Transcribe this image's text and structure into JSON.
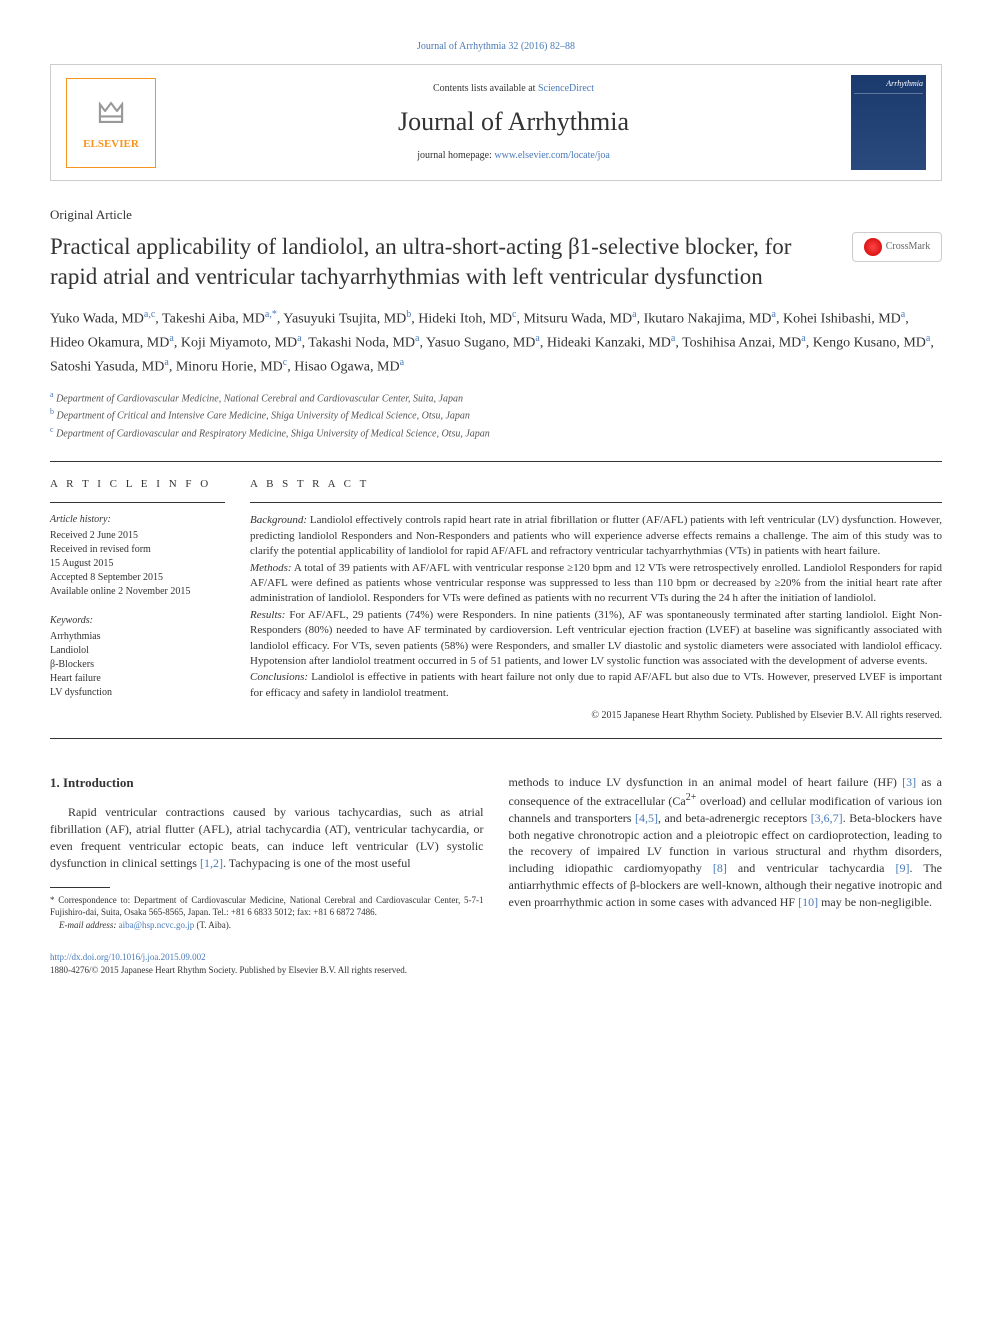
{
  "topLink": "Journal of Arrhythmia 32 (2016) 82–88",
  "header": {
    "contentsPrefix": "Contents lists available at ",
    "contentsLink": "ScienceDirect",
    "journalTitle": "Journal of Arrhythmia",
    "homepagePrefix": "journal homepage: ",
    "homepageLink": "www.elsevier.com/locate/joa",
    "elsevierBrand": "ELSEVIER",
    "coverTitle": "Arrhythmia"
  },
  "articleType": "Original Article",
  "title": "Practical applicability of landiolol, an ultra-short-acting β1-selective blocker, for rapid atrial and ventricular tachyarrhythmias with left ventricular dysfunction",
  "crossmark": "CrossMark",
  "authorsHTML": "Yuko Wada, MD<span class='sup'>a,c</span>, Takeshi Aiba, MD<span class='sup'>a,*</span>, Yasuyuki Tsujita, MD<span class='sup'>b</span>, Hideki Itoh, MD<span class='sup'>c</span>, Mitsuru Wada, MD<span class='sup'>a</span>, Ikutaro Nakajima, MD<span class='sup'>a</span>, Kohei Ishibashi, MD<span class='sup'>a</span>, Hideo Okamura, MD<span class='sup'>a</span>, Koji Miyamoto, MD<span class='sup'>a</span>, Takashi Noda, MD<span class='sup'>a</span>, Yasuo Sugano, MD<span class='sup'>a</span>, Hideaki Kanzaki, MD<span class='sup'>a</span>, Toshihisa Anzai, MD<span class='sup'>a</span>, Kengo Kusano, MD<span class='sup'>a</span>, Satoshi Yasuda, MD<span class='sup'>a</span>, Minoru Horie, MD<span class='sup'>c</span>, Hisao Ogawa, MD<span class='sup'>a</span>",
  "affiliations": [
    {
      "sup": "a",
      "text": "Department of Cardiovascular Medicine, National Cerebral and Cardiovascular Center, Suita, Japan"
    },
    {
      "sup": "b",
      "text": "Department of Critical and Intensive Care Medicine, Shiga University of Medical Science, Otsu, Japan"
    },
    {
      "sup": "c",
      "text": "Department of Cardiovascular and Respiratory Medicine, Shiga University of Medical Science, Otsu, Japan"
    }
  ],
  "infoHeading": "A R T I C L E   I N F O",
  "history": {
    "label": "Article history:",
    "lines": [
      "Received 2 June 2015",
      "Received in revised form",
      "15 August 2015",
      "Accepted 8 September 2015",
      "Available online 2 November 2015"
    ]
  },
  "keywords": {
    "label": "Keywords:",
    "items": [
      "Arrhythmias",
      "Landiolol",
      "β-Blockers",
      "Heart failure",
      "LV dysfunction"
    ]
  },
  "abstractHeading": "A B S T R A C T",
  "abstract": {
    "background": {
      "label": "Background:",
      "text": " Landiolol effectively controls rapid heart rate in atrial fibrillation or flutter (AF/AFL) patients with left ventricular (LV) dysfunction. However, predicting landiolol Responders and Non-Responders and patients who will experience adverse effects remains a challenge. The aim of this study was to clarify the potential applicability of landiolol for rapid AF/AFL and refractory ventricular tachyarrhythmias (VTs) in patients with heart failure."
    },
    "methods": {
      "label": "Methods:",
      "text": " A total of 39 patients with AF/AFL with ventricular response ≥120 bpm and 12 VTs were retrospectively enrolled. Landiolol Responders for rapid AF/AFL were defined as patients whose ventricular response was suppressed to less than 110 bpm or decreased by ≥20% from the initial heart rate after administration of landiolol. Responders for VTs were defined as patients with no recurrent VTs during the 24 h after the initiation of landiolol."
    },
    "results": {
      "label": "Results:",
      "text": " For AF/AFL, 29 patients (74%) were Responders. In nine patients (31%), AF was spontaneously terminated after starting landiolol. Eight Non-Responders (80%) needed to have AF terminated by cardioversion. Left ventricular ejection fraction (LVEF) at baseline was significantly associated with landiolol efficacy. For VTs, seven patients (58%) were Responders, and smaller LV diastolic and systolic diameters were associated with landiolol efficacy. Hypotension after landiolol treatment occurred in 5 of 51 patients, and lower LV systolic function was associated with the development of adverse events."
    },
    "conclusions": {
      "label": "Conclusions:",
      "text": " Landiolol is effective in patients with heart failure not only due to rapid AF/AFL but also due to VTs. However, preserved LVEF is important for efficacy and safety in landiolol treatment."
    }
  },
  "absCopyright": "© 2015 Japanese Heart Rhythm Society. Published by Elsevier B.V. All rights reserved.",
  "section1": {
    "heading": "1.  Introduction",
    "col1HTML": "Rapid ventricular contractions caused by various tachycardias, such as atrial fibrillation (AF), atrial flutter (AFL), atrial tachycardia (AT), ventricular tachycardia, or even frequent ventricular ectopic beats, can induce left ventricular (LV) systolic dysfunction in clinical settings <span class='ref-link'>[1,2]</span>. Tachypacing is one of the most useful",
    "col2HTML": "methods to induce LV dysfunction in an animal model of heart failure (HF) <span class='ref-link'>[3]</span> as a consequence of the extracellular (Ca<sup>2+</sup> overload) and cellular modification of various ion channels and transporters <span class='ref-link'>[4,5]</span>, and beta-adrenergic receptors <span class='ref-link'>[3,6,7]</span>. Beta-blockers have both negative chronotropic action and a pleiotropic effect on cardioprotection, leading to the recovery of impaired LV function in various structural and rhythm disorders, including idiopathic cardiomyopathy <span class='ref-link'>[8]</span> and ventricular tachycardia <span class='ref-link'>[9]</span>. The antiarrhythmic effects of β-blockers are well-known, although their negative inotropic and even proarrhythmic action in some cases with advanced HF <span class='ref-link'>[10]</span> may be non-negligible."
  },
  "correspondence": {
    "star": "*",
    "text": "Correspondence to: Department of Cardiovascular Medicine, National Cerebral and Cardiovascular Center, 5-7-1 Fujishiro-dai, Suita, Osaka 565-8565, Japan. Tel.: +81 6 6833 5012; fax: +81 6 6872 7486.",
    "emailLabel": "E-mail address:",
    "email": "aiba@hsp.ncvc.go.jp",
    "emailSuffix": "(T. Aiba)."
  },
  "footer": {
    "doi": "http://dx.doi.org/10.1016/j.joa.2015.09.002",
    "copyright": "1880-4276/© 2015 Japanese Heart Rhythm Society. Published by Elsevier B.V. All rights reserved."
  }
}
